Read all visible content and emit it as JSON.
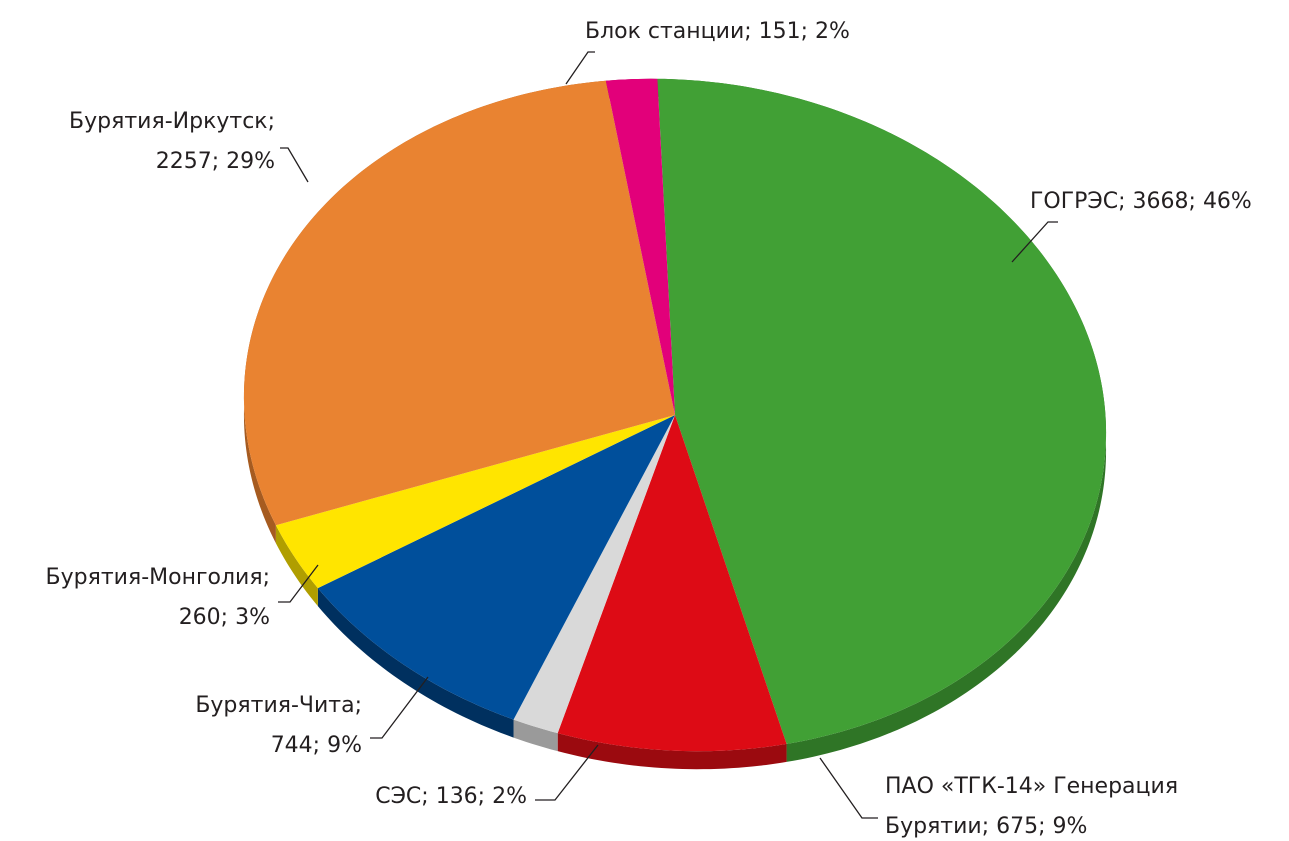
{
  "chart_data": {
    "type": "pie",
    "values": [
      3668,
      675,
      136,
      744,
      260,
      2257,
      151
    ],
    "value_labels": [
      [
        "ГОГРЭС; 3668; 46%"
      ],
      [
        "ПАО «ТГК-14» Генерация",
        "Бурятии; 675; 9%"
      ],
      [
        "СЭС; 136; 2%"
      ],
      [
        "Бурятия-Чита;",
        "744; 9%"
      ],
      [
        "Бурятия-Монголия;",
        "260; 3%"
      ],
      [
        "Бурятия-Иркутск;",
        "2257; 29%"
      ],
      [
        "Блок станции; 151; 2%"
      ]
    ],
    "colors": [
      "#41a035",
      "#dd0b15",
      "#d9d9d9",
      "#004f9b",
      "#ffe500",
      "#e98331",
      "#e2007a"
    ],
    "side_colors": [
      "#2f7526",
      "#9b0a0f",
      "#9a9a9a",
      "#00305f",
      "#b09e00",
      "#a65b20",
      "#9b0054"
    ]
  }
}
